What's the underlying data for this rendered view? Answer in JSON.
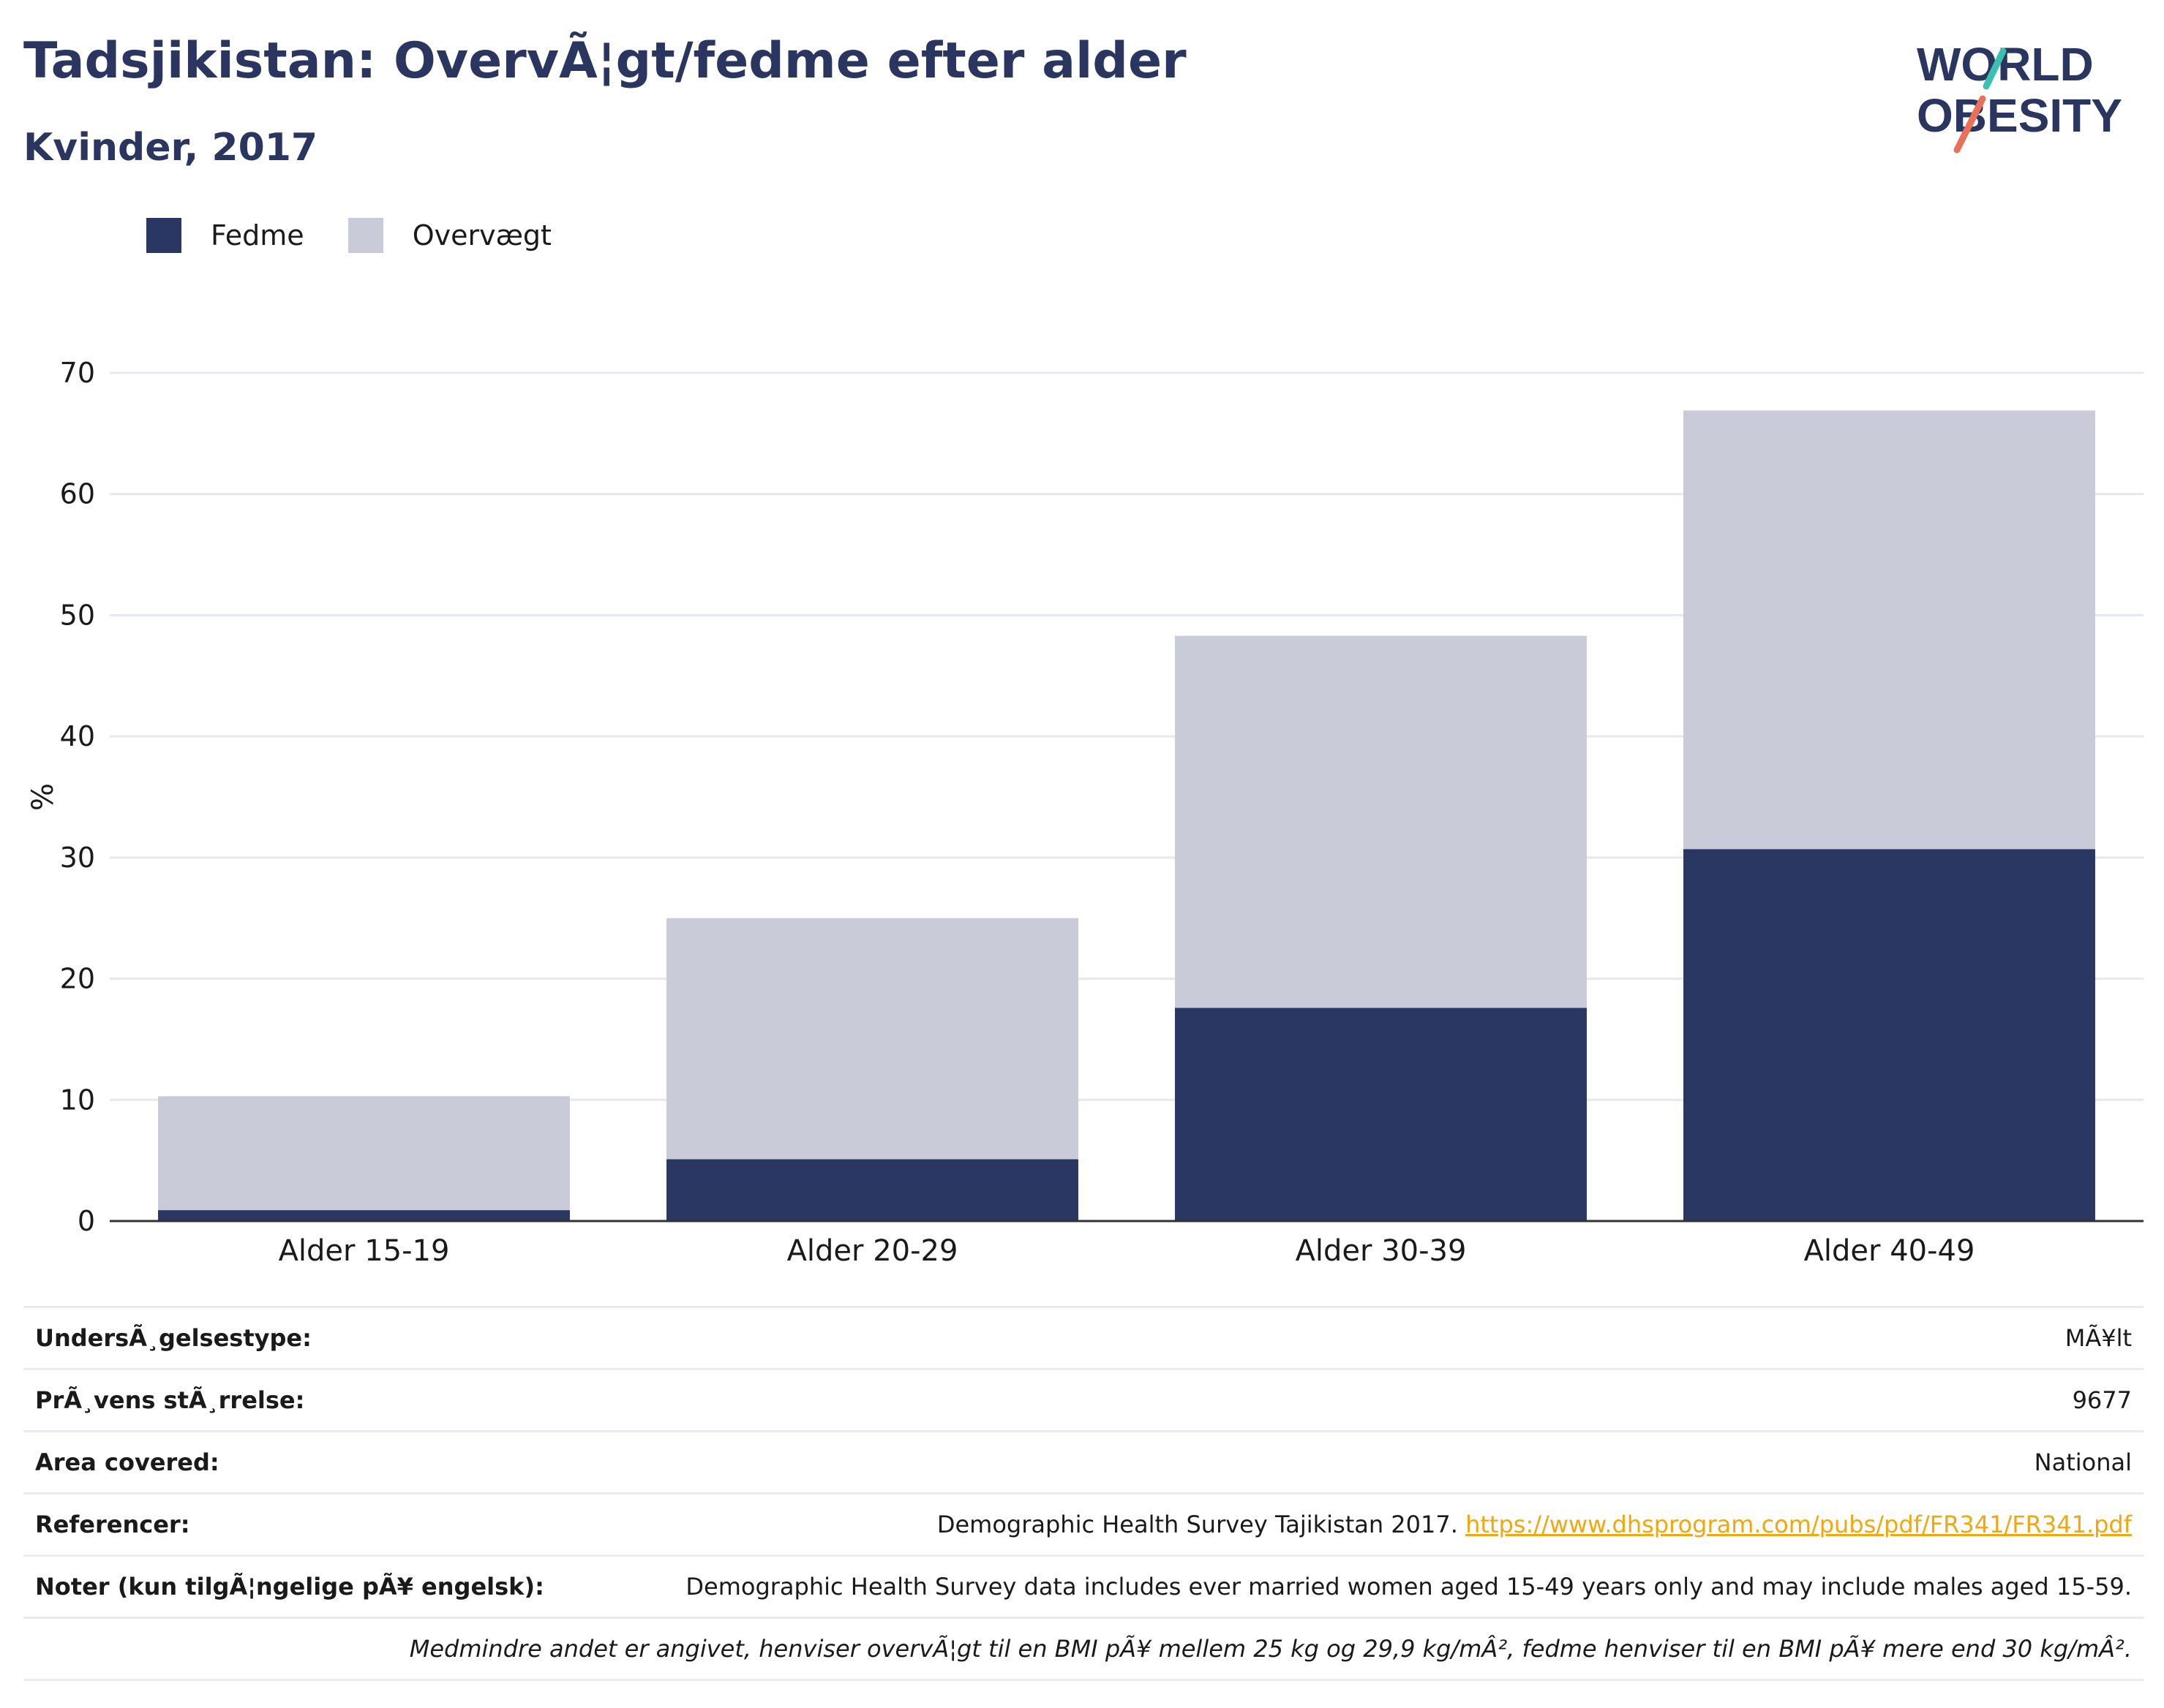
{
  "header": {
    "title": "Tadsjikistan: OvervÃ¦gt/fedme efter alder",
    "subtitle": "Kvinder, 2017",
    "logo_line1": "WORLD",
    "logo_line2": "OBESITY"
  },
  "legend": {
    "items": [
      {
        "label": "Fedme",
        "color": "#2a3762"
      },
      {
        "label": "Overvægt",
        "color": "#c9ccd8"
      }
    ]
  },
  "chart_data": {
    "type": "bar",
    "stacked": true,
    "categories": [
      "Alder 15-19",
      "Alder 20-29",
      "Alder 30-39",
      "Alder 40-49"
    ],
    "series": [
      {
        "name": "Fedme",
        "values": [
          0.9,
          5.1,
          17.6,
          30.7
        ]
      },
      {
        "name": "Overvægt",
        "values": [
          9.4,
          19.9,
          30.7,
          36.2
        ]
      }
    ],
    "ylabel": "%",
    "ylim": [
      0,
      70
    ],
    "yticks": [
      0,
      10,
      20,
      30,
      40,
      50,
      60,
      70
    ],
    "grid": true,
    "legend_position": "top-left"
  },
  "info": {
    "survey_type_label": "UndersÃ¸gelsestype:",
    "survey_type_value": "MÃ¥lt",
    "sample_size_label": "PrÃ¸vens stÃ¸rrelse:",
    "sample_size_value": "9677",
    "area_label": "Area covered:",
    "area_value": "National",
    "references_label": "Referencer:",
    "references_text": "Demographic Health Survey Tajikistan 2017.",
    "references_link": "https://www.dhsprogram.com/pubs/pdf/FR341/FR341.pdf",
    "notes_label": "Noter (kun tilgÃ¦ngelige pÃ¥ engelsk):",
    "notes_value": "Demographic Health Survey data includes ever married women aged 15-49 years only and may include males aged 15-59.",
    "footnote": "Medmindre andet er angivet, henviser overvÃ¦gt til en BMI pÃ¥ mellem 25 kg og 29,9 kg/mÂ², fedme henviser til en BMI pÃ¥ mere end 30 kg/mÂ²."
  }
}
